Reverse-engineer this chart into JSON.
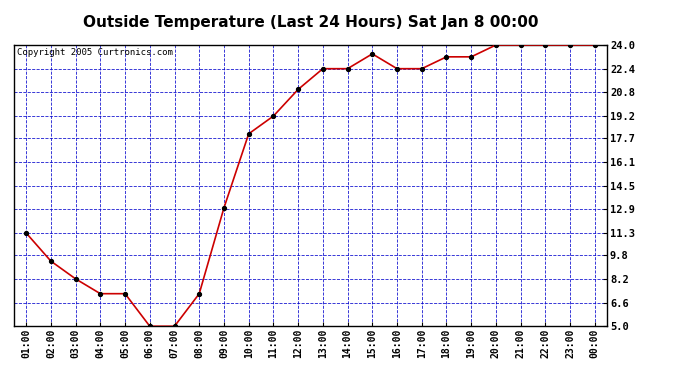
{
  "title": "Outside Temperature (Last 24 Hours) Sat Jan 8 00:00",
  "copyright": "Copyright 2005 Curtronics.com",
  "x_labels": [
    "01:00",
    "02:00",
    "03:00",
    "04:00",
    "05:00",
    "06:00",
    "07:00",
    "08:00",
    "09:00",
    "10:00",
    "11:00",
    "12:00",
    "13:00",
    "14:00",
    "15:00",
    "16:00",
    "17:00",
    "18:00",
    "19:00",
    "20:00",
    "21:00",
    "22:00",
    "23:00",
    "00:00"
  ],
  "y_values": [
    11.3,
    9.4,
    8.2,
    7.2,
    7.2,
    5.0,
    5.0,
    7.2,
    13.0,
    18.0,
    19.2,
    21.0,
    22.4,
    22.4,
    23.4,
    22.4,
    22.4,
    23.2,
    23.2,
    24.0,
    24.0,
    24.0,
    24.0,
    24.0
  ],
  "line_color": "#cc0000",
  "marker_color": "#000000",
  "bg_color": "#ffffff",
  "plot_bg_color": "#ffffff",
  "grid_color": "#0000cc",
  "border_color": "#000000",
  "ylim": [
    5.0,
    24.0
  ],
  "yticks": [
    5.0,
    6.6,
    8.2,
    9.8,
    11.3,
    12.9,
    14.5,
    16.1,
    17.7,
    19.2,
    20.8,
    22.4,
    24.0
  ],
  "title_fontsize": 11,
  "copyright_fontsize": 6.5,
  "tick_fontsize": 7,
  "ytick_fontsize": 7.5
}
